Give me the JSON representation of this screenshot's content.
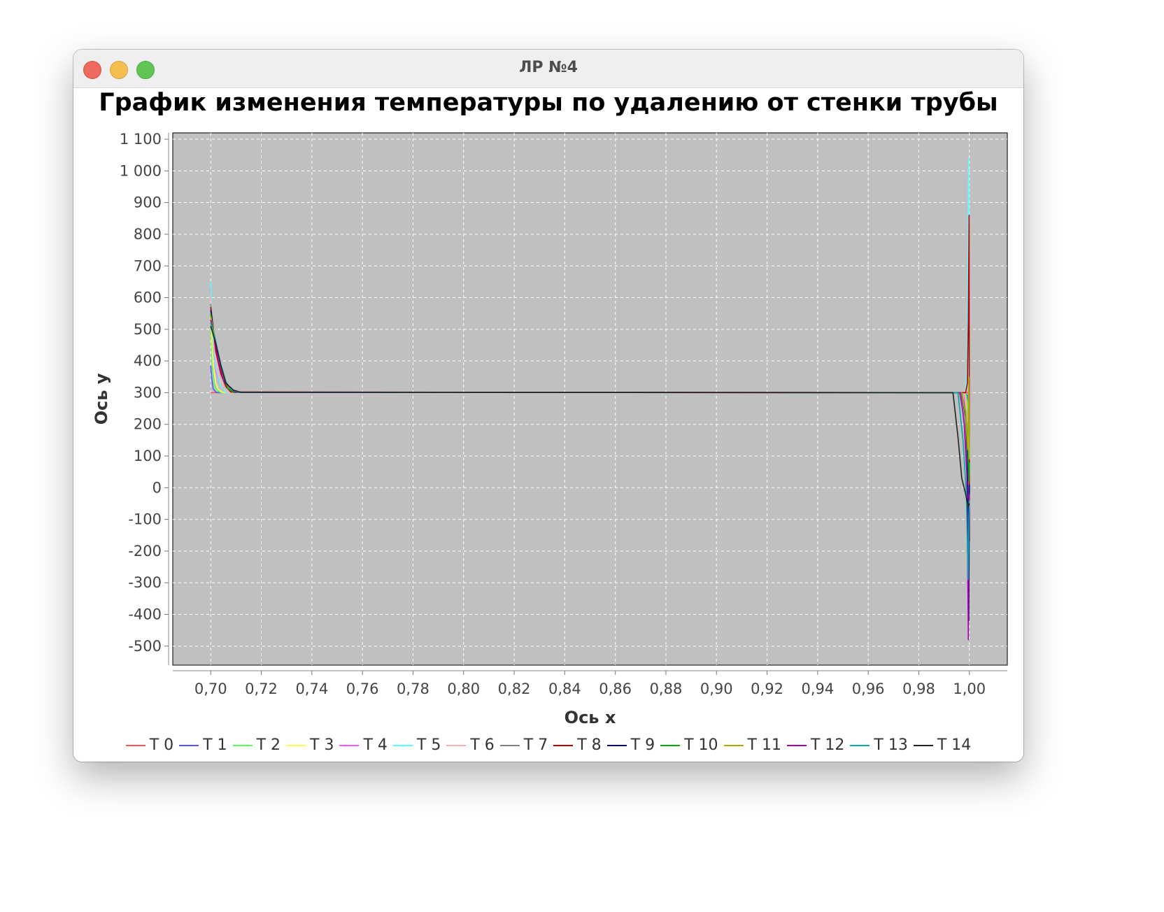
{
  "window": {
    "title": "ЛР №4",
    "controls": {
      "close_color": "#ed6a5e",
      "minimize_color": "#f5bf4f",
      "maximize_color": "#61c554"
    }
  },
  "chart_data": {
    "type": "line",
    "title": "График изменения температуры по удалению от стенки трубы",
    "xlabel": "Ось x",
    "ylabel": "Ось y",
    "xlim": [
      0.685,
      1.015
    ],
    "ylim": [
      -560,
      1120
    ],
    "x_ticks": [
      "0,70",
      "0,72",
      "0,74",
      "0,76",
      "0,78",
      "0,80",
      "0,82",
      "0,84",
      "0,86",
      "0,88",
      "0,90",
      "0,92",
      "0,94",
      "0,96",
      "0,98",
      "1,00"
    ],
    "y_ticks": [
      "1 100",
      "1 000",
      "900",
      "800",
      "700",
      "600",
      "500",
      "400",
      "300",
      "200",
      "100",
      "0",
      "-100",
      "-200",
      "-300",
      "-400",
      "-500"
    ],
    "grid": true,
    "plot_background": "#c0c0c0",
    "legend_position": "bottom",
    "series": [
      {
        "name": "T 0",
        "color": "#ff5555",
        "x": [
          0.7,
          0.7002,
          0.9999,
          1.0
        ],
        "y": [
          300,
          300,
          300,
          300
        ]
      },
      {
        "name": "T 1",
        "color": "#5555ff",
        "x": [
          0.7,
          0.7005,
          0.701,
          0.702,
          0.703,
          0.9985,
          0.9992,
          0.9996,
          1.0
        ],
        "y": [
          385,
          340,
          312,
          302,
          300,
          300,
          290,
          255,
          150
        ]
      },
      {
        "name": "T 2",
        "color": "#55ff55",
        "x": [
          0.7,
          0.7005,
          0.701,
          0.702,
          0.704,
          0.9985,
          0.9992,
          0.9996,
          1.0
        ],
        "y": [
          520,
          420,
          340,
          310,
          300,
          300,
          270,
          200,
          80
        ]
      },
      {
        "name": "T 3",
        "color": "#ffff55",
        "x": [
          0.7,
          0.7005,
          0.701,
          0.702,
          0.703,
          0.705,
          0.998,
          0.9988,
          0.9994,
          0.9998,
          1.0
        ],
        "y": [
          560,
          470,
          390,
          330,
          310,
          300,
          300,
          250,
          150,
          -10,
          30
        ]
      },
      {
        "name": "T 4",
        "color": "#ff55ff",
        "x": [
          0.7,
          0.7005,
          0.701,
          0.702,
          0.704,
          0.706,
          0.998,
          0.9988,
          0.9994,
          0.9998,
          1.0
        ],
        "y": [
          630,
          560,
          460,
          370,
          320,
          300,
          300,
          180,
          20,
          -170,
          -60
        ]
      },
      {
        "name": "T 5",
        "color": "#55ffff",
        "x": [
          0.7,
          0.7005,
          0.701,
          0.702,
          0.704,
          0.706,
          0.9985,
          0.999,
          0.9994,
          0.9997,
          0.9999,
          1.0
        ],
        "y": [
          650,
          560,
          470,
          380,
          320,
          300,
          300,
          380,
          700,
          1040,
          200,
          260
        ]
      },
      {
        "name": "T 6",
        "color": "#ffafaf",
        "x": [
          0.7,
          0.7008,
          0.7015,
          0.703,
          0.705,
          0.707,
          0.998,
          0.9988,
          0.9994,
          0.9998,
          1.0
        ],
        "y": [
          600,
          520,
          440,
          360,
          315,
          300,
          300,
          270,
          150,
          -50,
          40
        ]
      },
      {
        "name": "T 7",
        "color": "#808080",
        "x": [
          0.7,
          0.701,
          0.702,
          0.704,
          0.706,
          0.708,
          0.996,
          0.9975,
          0.9988,
          0.9995,
          1.0
        ],
        "y": [
          580,
          510,
          430,
          360,
          318,
          302,
          300,
          240,
          120,
          -40,
          20
        ]
      },
      {
        "name": "T 8",
        "color": "#c00000",
        "x": [
          0.7,
          0.701,
          0.702,
          0.704,
          0.706,
          0.708,
          0.9985,
          0.9992,
          0.9996,
          0.9999,
          1.0
        ],
        "y": [
          570,
          500,
          430,
          360,
          320,
          302,
          300,
          330,
          530,
          860,
          -170
        ]
      },
      {
        "name": "T 9",
        "color": "#00008b",
        "x": [
          0.7,
          0.701,
          0.703,
          0.705,
          0.707,
          0.709,
          0.997,
          0.9985,
          0.9993,
          0.9998,
          1.0
        ],
        "y": [
          560,
          500,
          420,
          350,
          315,
          301,
          300,
          220,
          90,
          -420,
          10
        ]
      },
      {
        "name": "T 10",
        "color": "#00aa00",
        "x": [
          0.7,
          0.701,
          0.703,
          0.705,
          0.707,
          0.709,
          0.997,
          0.9985,
          0.9993,
          0.9998,
          1.0
        ],
        "y": [
          550,
          490,
          410,
          345,
          312,
          301,
          300,
          240,
          140,
          20,
          80
        ]
      },
      {
        "name": "T 11",
        "color": "#aaaa00",
        "x": [
          0.7,
          0.7015,
          0.703,
          0.705,
          0.707,
          0.71,
          0.997,
          0.9985,
          0.9993,
          0.9998,
          1.0
        ],
        "y": [
          540,
          480,
          410,
          350,
          315,
          301,
          300,
          230,
          120,
          350,
          90
        ]
      },
      {
        "name": "T 12",
        "color": "#aa00aa",
        "x": [
          0.7,
          0.7015,
          0.703,
          0.705,
          0.708,
          0.71,
          0.9965,
          0.998,
          0.999,
          0.9996,
          0.9998,
          1.0
        ],
        "y": [
          530,
          470,
          400,
          340,
          310,
          301,
          300,
          200,
          40,
          -480,
          -100,
          -20
        ]
      },
      {
        "name": "T 13",
        "color": "#00aaaa",
        "x": [
          0.7,
          0.702,
          0.704,
          0.706,
          0.708,
          0.711,
          0.9955,
          0.9975,
          0.9988,
          0.9995,
          0.9998,
          1.0
        ],
        "y": [
          520,
          460,
          390,
          335,
          310,
          301,
          300,
          150,
          -20,
          -290,
          -100,
          -40
        ]
      },
      {
        "name": "T 14",
        "color": "#222222",
        "x": [
          0.7,
          0.702,
          0.704,
          0.706,
          0.709,
          0.712,
          0.9935,
          0.9955,
          0.997,
          0.9985,
          0.9995,
          1.0
        ],
        "y": [
          510,
          455,
          385,
          330,
          308,
          301,
          300,
          160,
          30,
          -20,
          -60,
          -50
        ]
      }
    ]
  }
}
